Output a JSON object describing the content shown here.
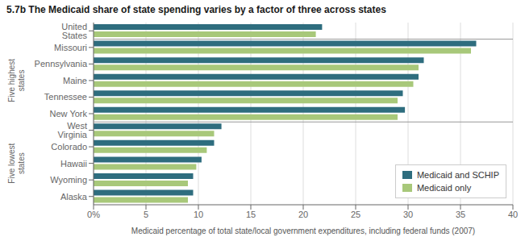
{
  "chart_data": {
    "type": "bar",
    "orientation": "horizontal",
    "title": "5.7b  The Medicaid share of state spending varies by a factor of three across states",
    "x_label": "Medicaid percentage of total state/local government expenditures, including federal funds (2007)",
    "categories": [
      "Alaska",
      "Wyoming",
      "Hawaii",
      "Colorado",
      "West Virginia",
      "New York",
      "Tennessee",
      "Maine",
      "Pennsylvania",
      "Missouri",
      "United States"
    ],
    "series": [
      {
        "name": "Medicaid and SCHIP",
        "color": "#2e6d7e",
        "values": [
          9.5,
          9.5,
          10.3,
          11.5,
          12.2,
          29.7,
          29.5,
          31.0,
          31.5,
          36.5,
          21.8
        ]
      },
      {
        "name": "Medicaid only",
        "color": "#a8c87a",
        "values": [
          9.0,
          9.0,
          9.8,
          10.8,
          11.5,
          29.0,
          29.0,
          30.5,
          31.0,
          36.0,
          21.2
        ]
      }
    ],
    "xlim": [
      0,
      40
    ],
    "xticks": [
      {
        "value": 0,
        "label": "0%"
      },
      5,
      10,
      15,
      20,
      25,
      30,
      35,
      40
    ],
    "grid": true,
    "legend": "lower right",
    "annotations": [
      "Five highest\nstates",
      "Five lowest\nstates"
    ]
  }
}
